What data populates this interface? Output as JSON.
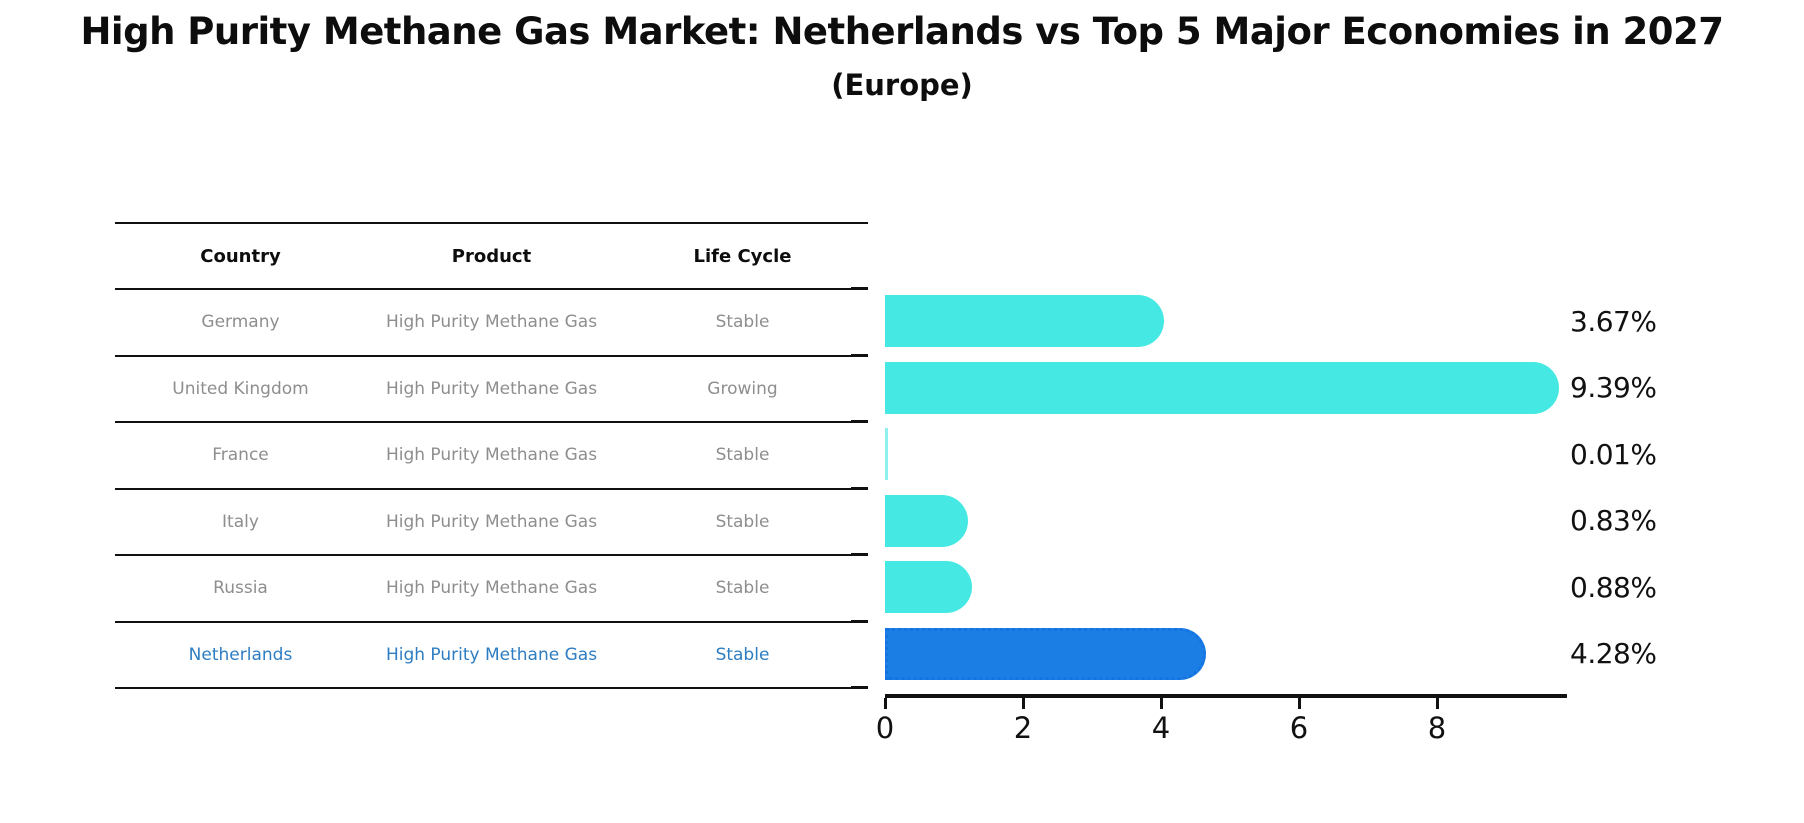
{
  "title": "High Purity Methane Gas Market: Netherlands vs Top 5 Major Economies in 2027",
  "subtitle": "(Europe)",
  "table": {
    "headers": [
      "Country",
      "Product",
      "Life Cycle"
    ],
    "rows": [
      {
        "country": "Germany",
        "product": "High Purity Methane Gas",
        "life_cycle": "Stable",
        "highlight": false
      },
      {
        "country": "United Kingdom",
        "product": "High Purity Methane Gas",
        "life_cycle": "Growing",
        "highlight": false
      },
      {
        "country": "France",
        "product": "High Purity Methane Gas",
        "life_cycle": "Stable",
        "highlight": false
      },
      {
        "country": "Italy",
        "product": "High Purity Methane Gas",
        "life_cycle": "Stable",
        "highlight": false
      },
      {
        "country": "Russia",
        "product": "High Purity Methane Gas",
        "life_cycle": "Stable",
        "highlight": true
      }
    ]
  },
  "chart_data": {
    "type": "bar",
    "orientation": "horizontal",
    "title": "High Purity Methane Gas Market: Netherlands vs Top 5 Major Economies in 2027",
    "subtitle": "(Europe)",
    "categories": [
      "Germany",
      "United Kingdom",
      "France",
      "Italy",
      "Russia",
      "Netherlands"
    ],
    "values": [
      3.67,
      9.39,
      0.01,
      0.83,
      0.88,
      4.28
    ],
    "value_labels": [
      "3.67%",
      "9.39%",
      "0.01%",
      "0.83%",
      "0.88%",
      "4.28%"
    ],
    "highlight_index": 5,
    "xlabel": "",
    "ylabel": "",
    "xlim": [
      0,
      9.85
    ],
    "xticks": [
      0,
      2,
      4,
      6,
      8
    ],
    "grid": false,
    "legend": "none"
  },
  "colors": {
    "bar_default": "#45E8E2",
    "bar_highlight": "#1A7EE5",
    "bar_highlight_border": "#1573E2",
    "row_text": "#8e8e8e",
    "row_text_highlight": "#2e7dc2",
    "axis": "#111111",
    "title_text": "#0d0d0d"
  }
}
